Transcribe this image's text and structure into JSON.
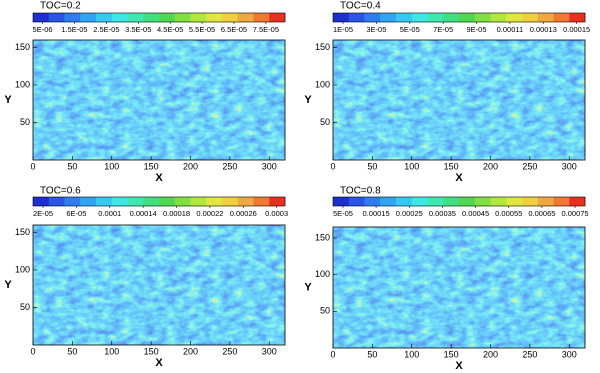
{
  "chart_data": [
    {
      "type": "heatmap",
      "title": "TOC=0.2",
      "xlabel": "X",
      "ylabel": "Y",
      "xlim": [
        0,
        320
      ],
      "ylim": [
        0,
        160
      ],
      "xticks": [
        0,
        50,
        100,
        150,
        200,
        250,
        300
      ],
      "yticks": [
        50,
        100,
        150
      ],
      "colorbar": {
        "clim": [
          2e-06,
          8.1e-05
        ],
        "ticks": [
          {
            "value": 5e-06,
            "label": "5E-06"
          },
          {
            "value": 1.5e-05,
            "label": "1.5E-05"
          },
          {
            "value": 2.5e-05,
            "label": "2.5E-05"
          },
          {
            "value": 3.5e-05,
            "label": "3.5E-05"
          },
          {
            "value": 4.5e-05,
            "label": "4.5E-05"
          },
          {
            "value": 5.5e-05,
            "label": "5.5E-05"
          },
          {
            "value": 6.5e-05,
            "label": "6.5E-05"
          },
          {
            "value": 7.5e-05,
            "label": "7.5E-05"
          }
        ],
        "colors": [
          "#1e2fcf",
          "#2a55e6",
          "#2d7df0",
          "#2fa6f4",
          "#35c8f2",
          "#3fe6e6",
          "#3fe8b0",
          "#40e080",
          "#50d850",
          "#80e040",
          "#b0e840",
          "#e0e840",
          "#f0d040",
          "#f0a840",
          "#f07830",
          "#e83020"
        ]
      }
    },
    {
      "type": "heatmap",
      "title": "TOC=0.4",
      "xlabel": "X",
      "ylabel": "Y",
      "xlim": [
        0,
        320
      ],
      "ylim": [
        0,
        160
      ],
      "xticks": [
        0,
        50,
        100,
        150,
        200,
        250,
        300
      ],
      "yticks": [
        50,
        100,
        150
      ],
      "colorbar": {
        "clim": [
          4e-06,
          0.000155
        ],
        "ticks": [
          {
            "value": 1e-05,
            "label": "1E-05"
          },
          {
            "value": 3e-05,
            "label": "3E-05"
          },
          {
            "value": 5e-05,
            "label": "5E-05"
          },
          {
            "value": 7e-05,
            "label": "7E-05"
          },
          {
            "value": 9e-05,
            "label": "9E-05"
          },
          0.00011,
          0.00013,
          0.00015
        ],
        "colors": [
          "#1e2fcf",
          "#2a55e6",
          "#2d7df0",
          "#2fa6f4",
          "#35c8f2",
          "#3fe6e6",
          "#3fe8b0",
          "#40e080",
          "#50d850",
          "#80e040",
          "#b0e840",
          "#e0e840",
          "#f0d040",
          "#f0a840",
          "#f07830",
          "#e83020"
        ]
      }
    },
    {
      "type": "heatmap",
      "title": "TOC=0.6",
      "xlabel": "X",
      "ylabel": "Y",
      "xlim": [
        0,
        320
      ],
      "ylim": [
        0,
        160
      ],
      "xticks": [
        0,
        50,
        100,
        150,
        200,
        250,
        300
      ],
      "yticks": [
        50,
        100,
        150
      ],
      "colorbar": {
        "clim": [
          8e-06,
          0.00031
        ],
        "ticks": [
          {
            "value": 2e-05,
            "label": "2E-05"
          },
          {
            "value": 6e-05,
            "label": "6E-05"
          },
          0.0001,
          0.00014,
          0.00018,
          0.00022,
          0.00026,
          0.0003
        ],
        "colors": [
          "#1e2fcf",
          "#2a55e6",
          "#2d7df0",
          "#2fa6f4",
          "#35c8f2",
          "#3fe6e6",
          "#3fe8b0",
          "#40e080",
          "#50d850",
          "#80e040",
          "#b0e840",
          "#e0e840",
          "#f0d040",
          "#f0a840",
          "#f07830",
          "#e83020"
        ]
      }
    },
    {
      "type": "heatmap",
      "title": "TOC=0.8",
      "xlabel": "X",
      "ylabel": "Y",
      "xlim": [
        0,
        320
      ],
      "ylim": [
        0,
        165
      ],
      "xticks": [
        0,
        50,
        100,
        150,
        200,
        250,
        300
      ],
      "yticks": [
        50,
        100,
        150
      ],
      "colorbar": {
        "clim": [
          2e-05,
          0.00078
        ],
        "ticks": [
          {
            "value": 5e-05,
            "label": "5E-05"
          },
          0.00015,
          0.00025,
          0.00035,
          0.00045,
          0.00055,
          0.00065,
          0.00075
        ],
        "colors": [
          "#1e2fcf",
          "#2a55e6",
          "#2d7df0",
          "#2fa6f4",
          "#35c8f2",
          "#3fe6e6",
          "#3fe8b0",
          "#40e080",
          "#50d850",
          "#80e040",
          "#b0e840",
          "#e0e840",
          "#f0d040",
          "#f0a840",
          "#f07830",
          "#e83020"
        ]
      }
    }
  ]
}
